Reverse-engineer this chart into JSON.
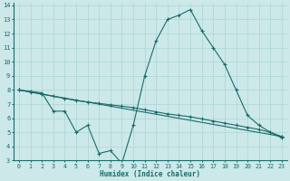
{
  "xlabel": "Humidex (Indice chaleur)",
  "xlim": [
    -0.5,
    23.5
  ],
  "ylim": [
    3,
    14.2
  ],
  "xticks": [
    0,
    1,
    2,
    3,
    4,
    5,
    6,
    7,
    8,
    9,
    10,
    11,
    12,
    13,
    14,
    15,
    16,
    17,
    18,
    19,
    20,
    21,
    22,
    23
  ],
  "yticks": [
    3,
    4,
    5,
    6,
    7,
    8,
    9,
    10,
    11,
    12,
    13,
    14
  ],
  "bg_color": "#cce8e8",
  "line_color": "#1a6b6b",
  "grid_color": "#aad4d4",
  "line1_x": [
    0,
    1,
    2,
    3,
    4,
    5,
    6,
    7,
    8,
    9,
    10,
    11,
    12,
    13,
    14,
    15,
    16,
    17,
    18,
    19,
    20,
    21,
    22,
    23
  ],
  "line1_y": [
    8.0,
    7.9,
    7.8,
    6.5,
    6.5,
    5.0,
    5.5,
    3.5,
    3.7,
    2.8,
    5.5,
    9.0,
    11.5,
    13.0,
    13.3,
    13.7,
    12.2,
    11.0,
    9.8,
    8.0,
    6.2,
    5.5,
    5.0,
    4.6
  ],
  "line2_x": [
    0,
    1,
    2,
    3,
    4,
    5,
    6,
    7,
    8,
    9,
    10,
    11,
    12,
    13,
    14,
    15,
    16,
    17,
    18,
    19,
    20,
    21,
    22,
    23
  ],
  "line2_y": [
    8.0,
    7.85,
    7.7,
    7.55,
    7.4,
    7.25,
    7.15,
    7.05,
    6.95,
    6.85,
    6.75,
    6.6,
    6.45,
    6.3,
    6.2,
    6.1,
    5.95,
    5.8,
    5.65,
    5.5,
    5.35,
    5.2,
    5.0,
    4.7
  ],
  "line3_x": [
    0,
    23
  ],
  "line3_y": [
    8.0,
    4.7
  ]
}
